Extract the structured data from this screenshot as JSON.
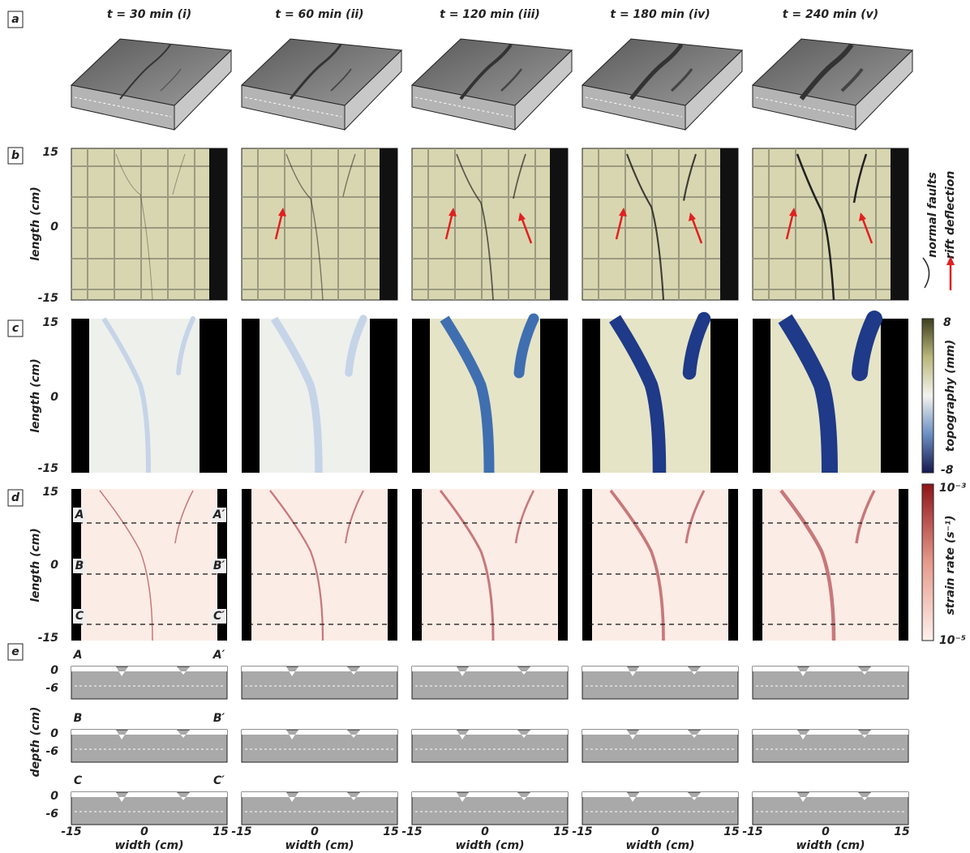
{
  "panel_labels": [
    "a",
    "b",
    "c",
    "d",
    "e"
  ],
  "columns": [
    {
      "title": "t = 30 min (i)"
    },
    {
      "title": "t = 60 min (ii)"
    },
    {
      "title": "t = 120 min (iii)"
    },
    {
      "title": "t = 180 min (iv)"
    },
    {
      "title": "t = 240 min (v)"
    }
  ],
  "row_b": {
    "y_label": "length (cm)",
    "y_ticks": [
      "15",
      "0",
      "-15"
    ],
    "legend": [
      "normal faults",
      "rift deflection"
    ]
  },
  "row_c": {
    "y_label": "length (cm)",
    "y_ticks": [
      "15",
      "0",
      "-15"
    ],
    "colorbar_label": "topography (mm)",
    "colorbar_ticks": [
      "8",
      "-8"
    ]
  },
  "row_d": {
    "y_label": "length (cm)",
    "y_ticks": [
      "15",
      "0",
      "-15"
    ],
    "colorbar_label": "strain rate (s⁻¹)",
    "colorbar_ticks": [
      "10⁻³",
      "10⁻⁵"
    ],
    "section_labels": [
      [
        "A",
        "A′"
      ],
      [
        "B",
        "B′"
      ],
      [
        "C",
        "C′"
      ]
    ]
  },
  "row_e": {
    "y_label": "depth (cm)",
    "y_ticks": [
      "0",
      "-6"
    ],
    "section_labels": [
      [
        "A",
        "A′"
      ],
      [
        "B",
        "B′"
      ],
      [
        "C",
        "C′"
      ]
    ],
    "x_ticks": [
      "-15",
      "0",
      "15"
    ],
    "x_label": "width (cm)"
  }
}
